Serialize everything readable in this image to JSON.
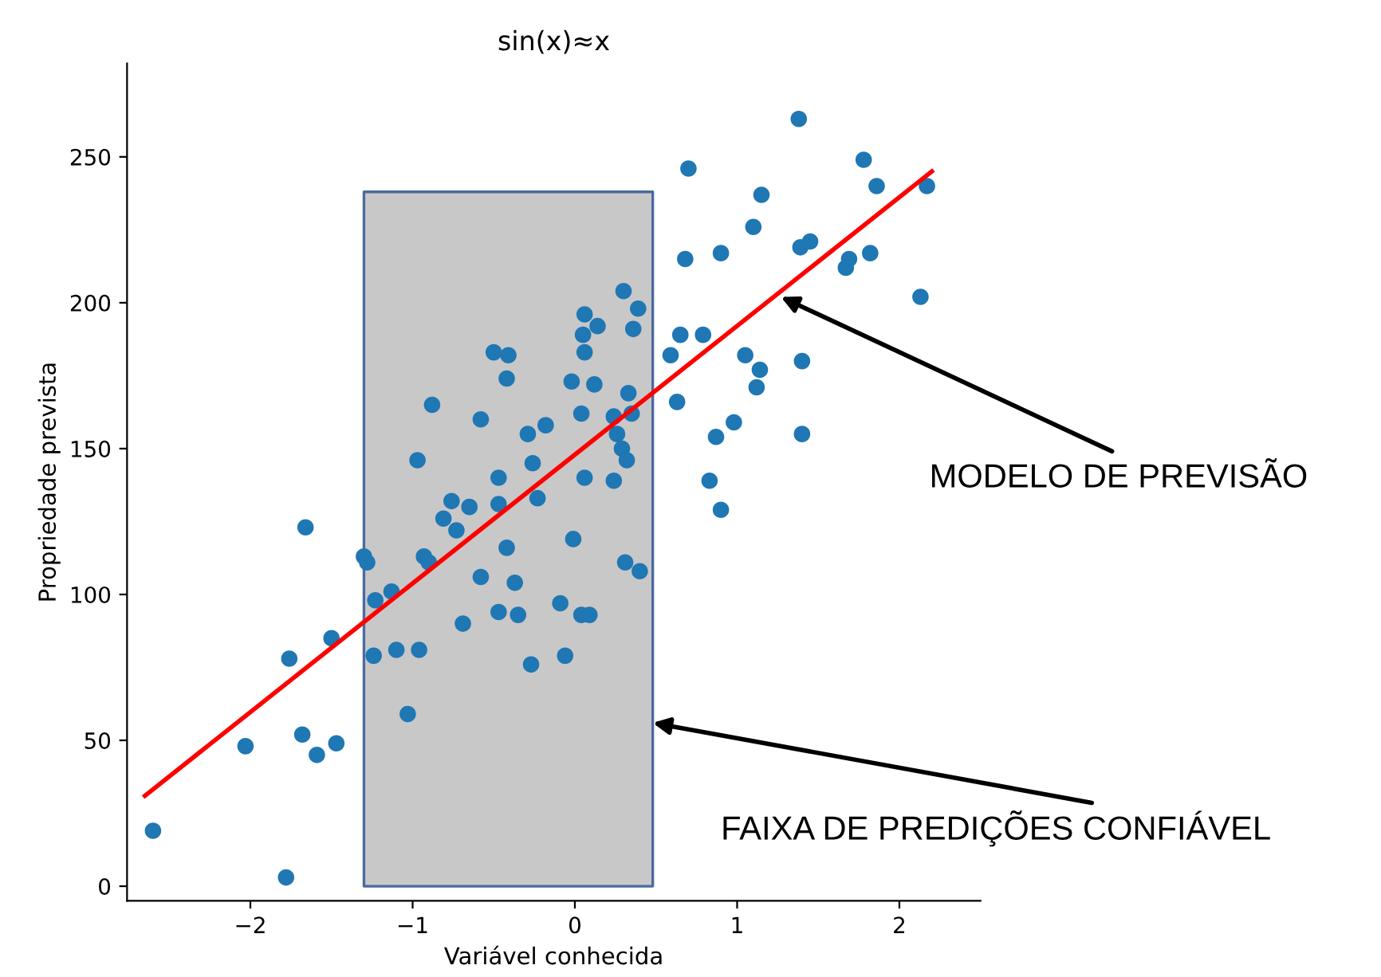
{
  "chart_data": {
    "type": "scatter",
    "title": "sin(x)≈x",
    "xlabel": "Variável conhecida",
    "ylabel": "Propriedade prevista",
    "xlim": [
      -2.76,
      2.5
    ],
    "ylim": [
      -5,
      282
    ],
    "xticks": [
      {
        "value": -2,
        "label": "−2"
      },
      {
        "value": -1,
        "label": "−1"
      },
      0,
      1,
      2
    ],
    "yticks": [
      0,
      50,
      100,
      150,
      200,
      250
    ],
    "grid": false,
    "annotations": [
      {
        "text": "MODELO DE PREVISÃO",
        "x": 1.27,
        "y": 202
      },
      {
        "text": "FAIXA DE PREDIÇÕES CONFIÁVEL",
        "x": 0.48,
        "y": 56
      }
    ],
    "series": [
      {
        "type": "area",
        "color": "#c8c8c8",
        "x": [
          -1.3,
          0.48
        ],
        "values": [
          238,
          238
        ]
      },
      {
        "marker": "circle",
        "color": "#1f77b4",
        "x": [
          -0.5,
          -0.41,
          -0.42,
          -0.02,
          0.06,
          0.05,
          0.06,
          -0.88,
          -0.58,
          -0.18,
          -0.29,
          0.04,
          -0.97,
          -0.26,
          -0.47,
          0.06,
          -0.76,
          -0.65,
          -0.47,
          -0.23,
          1.38,
          0.7,
          1.78,
          1.86,
          2.17,
          1.15,
          1.1,
          1.39,
          1.45,
          0.68,
          0.9,
          1.69,
          1.67,
          1.82,
          2.13,
          0.3,
          0.39,
          0.36,
          0.14,
          0.65,
          0.79,
          0.59,
          1.05,
          1.14,
          1.12,
          1.4,
          0.12,
          0.33,
          0.35,
          0.24,
          0.63,
          0.98,
          0.87,
          1.4,
          0.26,
          0.29,
          0.32,
          0.24,
          0.83,
          0.9,
          -0.01,
          0.31,
          0.4,
          0.04,
          0.09,
          -1.66,
          -1.3,
          -1.28,
          -0.81,
          -0.73,
          -0.93,
          -0.9,
          -0.42,
          -0.58,
          -0.37,
          -1.23,
          -1.13,
          -0.47,
          -0.35,
          -0.09,
          -0.69,
          -1.5,
          -1.76,
          -1.24,
          -1.1,
          -0.96,
          -0.27,
          -0.06,
          -1.03,
          -2.03,
          -1.68,
          -1.59,
          -1.47,
          -2.6,
          -1.78
        ],
        "values": [
          183,
          182,
          174,
          173,
          196,
          189,
          183,
          165,
          160,
          158,
          155,
          162,
          146,
          145,
          140,
          140,
          132,
          130,
          131,
          133,
          263,
          246,
          249,
          240,
          240,
          237,
          226,
          219,
          221,
          215,
          217,
          215,
          212,
          217,
          202,
          204,
          198,
          191,
          192,
          189,
          189,
          182,
          182,
          177,
          171,
          180,
          172,
          169,
          162,
          161,
          166,
          159,
          154,
          155,
          155,
          150,
          146,
          139,
          139,
          129,
          119,
          111,
          108,
          93,
          93,
          123,
          113,
          111,
          126,
          122,
          113,
          111,
          116,
          106,
          104,
          98,
          101,
          94,
          93,
          97,
          90,
          85,
          78,
          79,
          81,
          81,
          76,
          79,
          59,
          48,
          52,
          45,
          49,
          19,
          3
        ]
      },
      {
        "type": "line",
        "color": "#ff0000",
        "x": [
          -2.65,
          2.2
        ],
        "values": [
          31,
          245
        ]
      }
    ]
  }
}
